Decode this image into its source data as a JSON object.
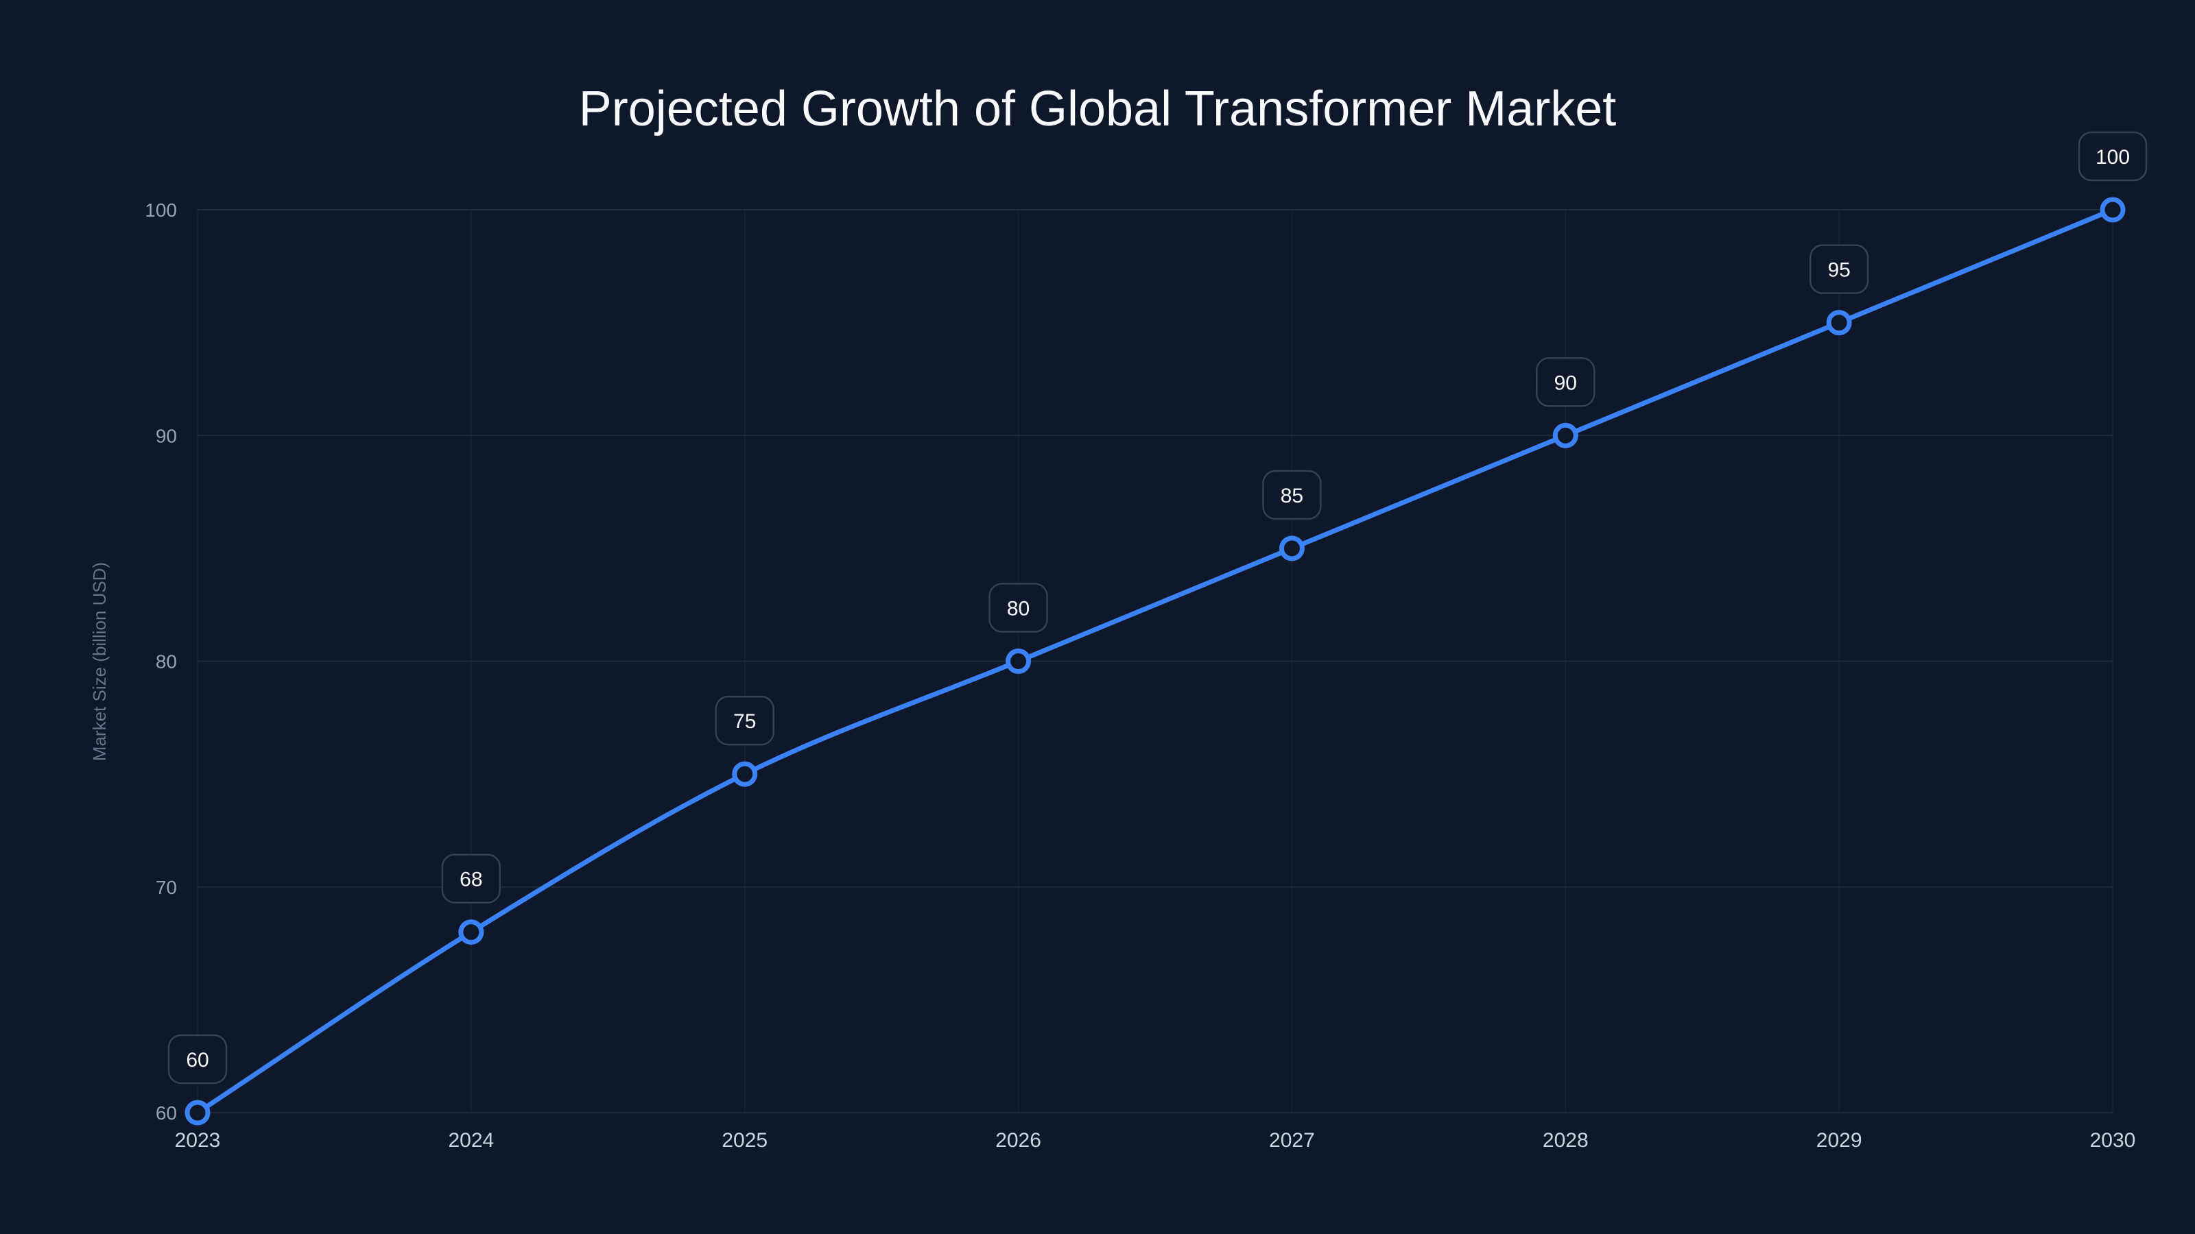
{
  "chart_data": {
    "type": "line",
    "title": "Projected Growth of Global Transformer Market",
    "xlabel": "",
    "ylabel": "Market Size (billion USD)",
    "categories": [
      "2023",
      "2024",
      "2025",
      "2026",
      "2027",
      "2028",
      "2029",
      "2030"
    ],
    "series": [
      {
        "name": "Market Size",
        "values": [
          60,
          68,
          75,
          80,
          85,
          90,
          95,
          100
        ],
        "color": "#3B82F6"
      }
    ],
    "ylim": [
      60,
      100
    ],
    "yticks": [
      60,
      70,
      80,
      90,
      100
    ],
    "grid": true,
    "legend": "none",
    "data_labels": true,
    "curve": "smooth"
  },
  "colors": {
    "background": "#0F172A",
    "line": "#3B82F6",
    "grid": "#1E293B",
    "label_border": "#334155"
  }
}
